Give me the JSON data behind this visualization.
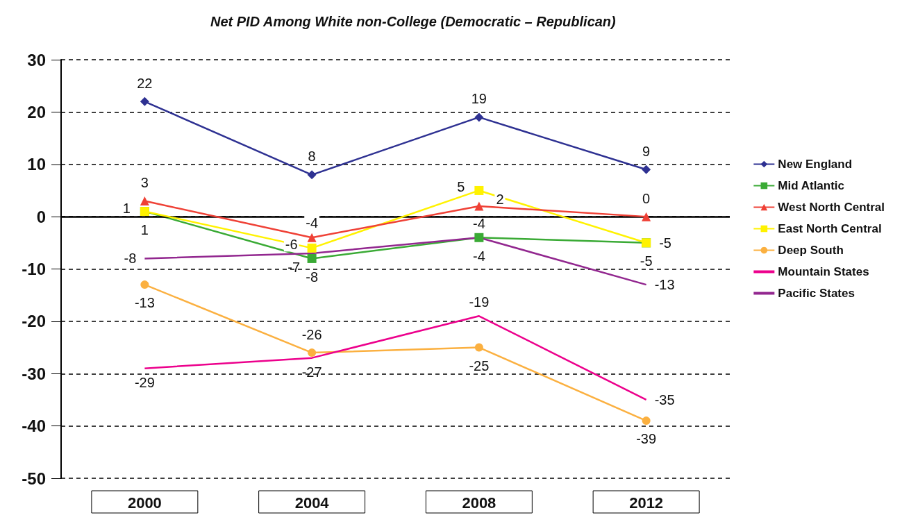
{
  "chart_data": {
    "type": "line",
    "title": "Net PID Among White non-College (Democratic – Republican)",
    "categories": [
      "2000",
      "2004",
      "2008",
      "2012"
    ],
    "series": [
      {
        "name": "New England",
        "color": "#2e3192",
        "marker": "diamond",
        "values": [
          22,
          8,
          19,
          9
        ]
      },
      {
        "name": "Mid Atlantic",
        "color": "#3aaa35",
        "marker": "square",
        "values": [
          1,
          -8,
          -4,
          -5
        ]
      },
      {
        "name": "West North Central",
        "color": "#ef4136",
        "marker": "triangle",
        "values": [
          3,
          -4,
          2,
          0
        ]
      },
      {
        "name": "East North Central",
        "color": "#fff200",
        "marker": "square",
        "values": [
          1,
          -6,
          5,
          -5
        ]
      },
      {
        "name": "Deep South",
        "color": "#fbb040",
        "marker": "circle",
        "values": [
          -13,
          -26,
          -25,
          -39
        ]
      },
      {
        "name": "Mountain States",
        "color": "#ec008c",
        "marker": "none",
        "values": [
          -29,
          -27,
          -19,
          -35
        ]
      },
      {
        "name": "Pacific States",
        "color": "#92278f",
        "marker": "none",
        "values": [
          -8,
          -7,
          -4,
          -13
        ]
      }
    ],
    "ylim": [
      -50,
      30
    ],
    "yticks": [
      -50,
      -40,
      -30,
      -20,
      -10,
      0,
      10,
      20,
      30
    ],
    "grid": "y",
    "legend": "right",
    "data_labels": true,
    "ref_lines": [
      {
        "axis": "y",
        "value": 0,
        "color": "#000000",
        "line_style": "solid"
      }
    ]
  }
}
